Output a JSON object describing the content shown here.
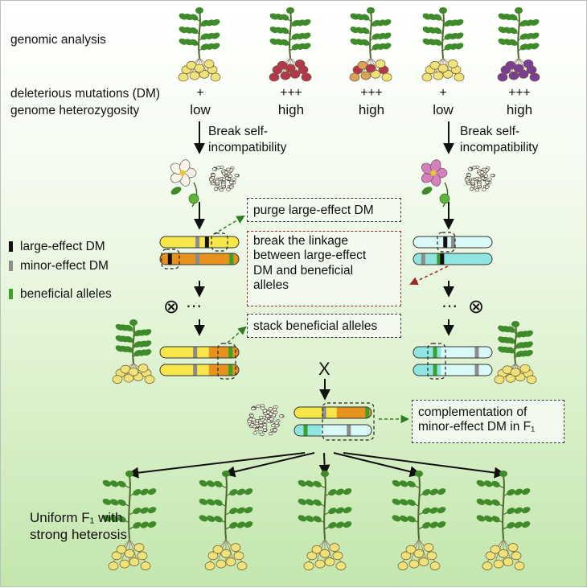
{
  "header": {
    "genomic_analysis": "genomic analysis",
    "dm_row_label": "deleterious mutations (DM)",
    "heterozygosity_row_label": "genome heterozygosity"
  },
  "parents": [
    {
      "dm": "+",
      "heterozygosity": "low",
      "tuber": "yellow"
    },
    {
      "dm": "+++",
      "heterozygosity": "high",
      "tuber": "red"
    },
    {
      "dm": "+++",
      "heterozygosity": "high",
      "tuber": "mixed"
    },
    {
      "dm": "+",
      "heterozygosity": "low",
      "tuber": "yellow"
    },
    {
      "dm": "+++",
      "heterozygosity": "high",
      "tuber": "purple"
    }
  ],
  "break_si": {
    "left": [
      "Break self-",
      "incompatibility"
    ],
    "right": [
      "Break self-",
      "incompatibility"
    ]
  },
  "legend": [
    {
      "label": "large-effect DM",
      "color": "#111111"
    },
    {
      "label": "minor-effect DM",
      "color": "#8c8c8c"
    },
    {
      "label": "beneficial alleles",
      "color": "#3aa12b"
    }
  ],
  "steps": {
    "purge": "purge large-effect DM",
    "break_linkage": [
      "break the linkage",
      "between large-effect",
      "DM and beneficial",
      "alleles"
    ],
    "stack": "stack beneficial alleles",
    "complementation": [
      "complementation of",
      "minor-effect DM in F₁"
    ]
  },
  "symbols": {
    "selfing": "⊗",
    "ellipsis": "⋯",
    "cross": "X"
  },
  "f1_label": [
    "Uniform F₁ with",
    "strong heterosis"
  ],
  "colors": {
    "yellow": "#f6e64a",
    "orange": "#e8921e",
    "cyan_light": "#d9f8f8",
    "cyan": "#8fe6e0",
    "leaf": "#3f8a2a",
    "tuber_yellow": "#efe27a",
    "tuber_red": "#b3384f",
    "tuber_purple": "#7a3e9a",
    "flower_white": "#f7f3e6",
    "flower_pink": "#d77fbc"
  }
}
